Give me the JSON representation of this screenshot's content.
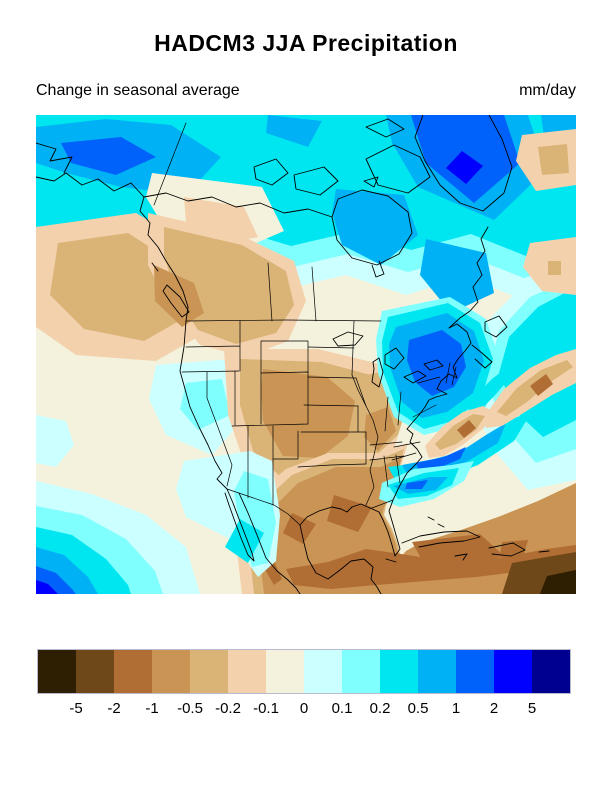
{
  "header": {
    "title": "HADCM3 JJA Precipitation",
    "subtitle_left": "Change in seasonal average",
    "units_right": "mm/day"
  },
  "chart_data": {
    "type": "heatmap",
    "variant": "filled-contour-map",
    "title": "HADCM3 JJA Precipitation",
    "subtitle": "Change in seasonal average",
    "units": "mm/day",
    "region": "North America (Alaska and Arctic Canada to Greenland, south to Mexico and the Caribbean)",
    "legend_position": "bottom",
    "colorbar": {
      "orientation": "horizontal",
      "levels": [
        -5,
        -2,
        -1,
        -0.5,
        -0.2,
        -0.1,
        0,
        0.1,
        0.2,
        0.5,
        1,
        2,
        5
      ],
      "tick_labels": [
        "-5",
        "-2",
        "-1",
        "-0.5",
        "-0.2",
        "-0.1",
        "0",
        "0.1",
        "0.2",
        "0.5",
        "1",
        "2",
        "5"
      ],
      "colors": [
        "#2f1f02",
        "#6e4818",
        "#b06e34",
        "#ca9455",
        "#dab377",
        "#f3d1ac",
        "#f4f2dc",
        "#ccffff",
        "#80ffff",
        "#00e6f0",
        "#00b2f5",
        "#0062fa",
        "#0000ff",
        "#000090"
      ]
    },
    "map_reading": [
      {
        "area": "Arctic Ocean and northern Canada",
        "change_mm_day": "+0.2 to +0.5"
      },
      {
        "area": "Greenland / Davis Strait cell",
        "change_mm_day": "+1 to +5"
      },
      {
        "area": "Beaufort Sea (top-left)",
        "change_mm_day": "+0.5 to +2"
      },
      {
        "area": "Hudson Bay and Labrador",
        "change_mm_day": "+0.5 to +1"
      },
      {
        "area": "Pacific Northwest and British Columbia",
        "change_mm_day": "-0.5 to -1"
      },
      {
        "area": "Great Plains (Dakotas to Kansas)",
        "change_mm_day": "-0.5 to -1"
      },
      {
        "area": "Southwest US (CA/NV/AZ/NM)",
        "change_mm_day": "-0.1 to +0.1"
      },
      {
        "area": "Northeast US (NY/PA/New England)",
        "change_mm_day": "+1 to +2"
      },
      {
        "area": "Southeast US, Gulf of Mexico, Mexico, Caribbean",
        "change_mm_day": "-0.5 to -2"
      },
      {
        "area": "Western Atlantic brown cells east of Delmarva",
        "change_mm_day": "-1 to -2"
      },
      {
        "area": "Atlantic off the Carolinas",
        "change_mm_day": "+0.5 to +1"
      },
      {
        "area": "Sierra Madre monsoon spot (NW Mexico)",
        "change_mm_day": "+0.2 to +0.5"
      },
      {
        "area": "Tropical Pacific (bottom-left corner)",
        "change_mm_day": "+1 to +2"
      },
      {
        "area": "Far southeast Caribbean corner",
        "change_mm_day": "-2 to < -5"
      }
    ]
  },
  "colors": {
    "coastline": "#000000",
    "page_bg": "#ffffff",
    "text": "#000000"
  }
}
